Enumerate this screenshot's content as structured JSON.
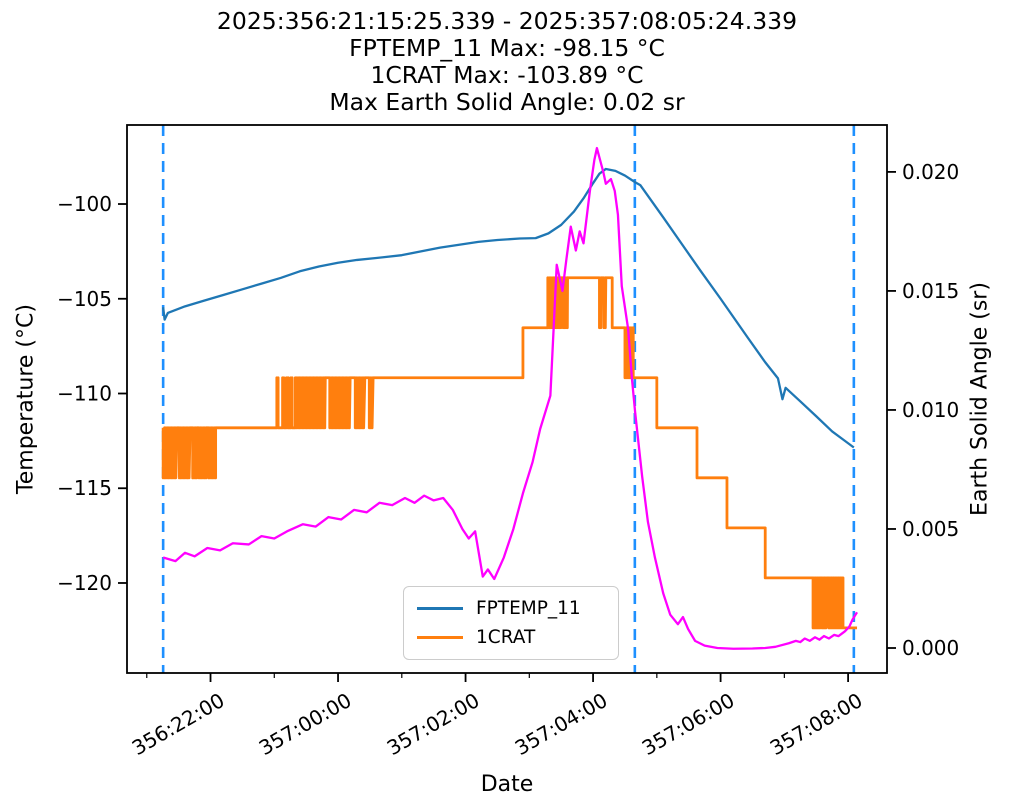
{
  "figure": {
    "kind": "matplotlib-line-plot",
    "background": "#ffffff"
  },
  "title_lines": [
    "2025:356:21:15:25.339 - 2025:357:08:05:24.339",
    "FPTEMP_11 Max: -98.15 °C",
    "1CRAT Max: -103.89 °C",
    "Max Earth Solid Angle: 0.02 sr"
  ],
  "stats": {
    "time_range_start": "2025:356:21:15:25.339",
    "time_range_end": "2025:357:08:05:24.339",
    "fptemp_11_max_c": -98.15,
    "crat_max_c": -103.89,
    "max_earth_solid_angle_sr": 0.02
  },
  "legend": {
    "items": [
      {
        "label": "FPTEMP_11",
        "color": "#1f77b4"
      },
      {
        "label": "1CRAT",
        "color": "#ff7f0e"
      }
    ]
  },
  "chart_data": {
    "type": "line",
    "x_axis": {
      "label": "Date",
      "units": "hours since day 356 00:00 (ticks shown as day:hh:mm)",
      "lim": [
        20.69,
        32.61
      ],
      "major_ticks": [
        {
          "t": 22,
          "label": "356:22:00"
        },
        {
          "t": 24,
          "label": "357:00:00"
        },
        {
          "t": 26,
          "label": "357:02:00"
        },
        {
          "t": 28,
          "label": "357:04:00"
        },
        {
          "t": 30,
          "label": "357:06:00"
        },
        {
          "t": 32,
          "label": "357:08:00"
        }
      ],
      "minor_ticks": [
        21,
        23,
        25,
        27,
        29,
        31
      ]
    },
    "y_left": {
      "label": "Temperature (°C)",
      "lim": [
        -124.75,
        -95.83
      ],
      "ticks": [
        {
          "v": -100,
          "label": "−100"
        },
        {
          "v": -105,
          "label": "−105"
        },
        {
          "v": -110,
          "label": "−110"
        },
        {
          "v": -115,
          "label": "−115"
        },
        {
          "v": -120,
          "label": "−120"
        }
      ]
    },
    "y_right": {
      "label": "Earth Solid Angle (sr)",
      "lim": [
        -0.00105,
        0.02197
      ],
      "ticks": [
        {
          "v": 0.0,
          "label": "0.000"
        },
        {
          "v": 0.005,
          "label": "0.005"
        },
        {
          "v": 0.01,
          "label": "0.010"
        },
        {
          "v": 0.015,
          "label": "0.015"
        },
        {
          "v": 0.02,
          "label": "0.020"
        }
      ]
    },
    "vlines": {
      "color": "#1E90FF",
      "style": "dashed",
      "times": [
        21.257,
        28.655,
        32.09
      ]
    },
    "series": [
      {
        "name": "FPTEMP_11",
        "axis": "left",
        "color": "#1f77b4",
        "width": 2.3,
        "points": [
          [
            21.257,
            -105.45
          ],
          [
            21.28,
            -106.1
          ],
          [
            21.33,
            -105.75
          ],
          [
            21.6,
            -105.4
          ],
          [
            21.9,
            -105.1
          ],
          [
            22.2,
            -104.8
          ],
          [
            22.5,
            -104.5
          ],
          [
            22.8,
            -104.2
          ],
          [
            23.1,
            -103.9
          ],
          [
            23.4,
            -103.55
          ],
          [
            23.7,
            -103.3
          ],
          [
            24.0,
            -103.1
          ],
          [
            24.3,
            -102.95
          ],
          [
            24.6,
            -102.85
          ],
          [
            25.0,
            -102.7
          ],
          [
            25.3,
            -102.5
          ],
          [
            25.6,
            -102.3
          ],
          [
            25.9,
            -102.15
          ],
          [
            26.2,
            -102.0
          ],
          [
            26.5,
            -101.9
          ],
          [
            26.85,
            -101.82
          ],
          [
            27.1,
            -101.8
          ],
          [
            27.3,
            -101.55
          ],
          [
            27.5,
            -101.1
          ],
          [
            27.7,
            -100.4
          ],
          [
            27.85,
            -99.7
          ],
          [
            28.0,
            -98.9
          ],
          [
            28.1,
            -98.4
          ],
          [
            28.2,
            -98.15
          ],
          [
            28.35,
            -98.25
          ],
          [
            28.5,
            -98.5
          ],
          [
            28.66,
            -98.85
          ],
          [
            28.74,
            -99.0
          ],
          [
            29.1,
            -100.7
          ],
          [
            29.4,
            -102.15
          ],
          [
            29.68,
            -103.5
          ],
          [
            30.0,
            -105.0
          ],
          [
            30.43,
            -107.07
          ],
          [
            30.7,
            -108.35
          ],
          [
            30.9,
            -109.2
          ],
          [
            30.97,
            -110.3
          ],
          [
            31.02,
            -109.7
          ],
          [
            31.245,
            -110.4
          ],
          [
            31.5,
            -111.2
          ],
          [
            31.75,
            -112.0
          ],
          [
            31.95,
            -112.5
          ],
          [
            32.09,
            -112.85
          ]
        ]
      },
      {
        "name": "1CRAT",
        "axis": "left",
        "color": "#ff7f0e",
        "width": 2.8,
        "quant_levels": [
          -103.89,
          -106.53,
          -109.17,
          -111.81,
          -114.45,
          -117.09,
          -119.73,
          -122.37
        ],
        "osc_step_h": 0.022,
        "segments": [
          {
            "type": "osc",
            "t0": 21.257,
            "t1": 21.475,
            "hi": -111.81,
            "lo": -114.45
          },
          {
            "type": "level",
            "t0": 21.475,
            "t1": 21.51,
            "v": -111.81
          },
          {
            "type": "osc",
            "t0": 21.51,
            "t1": 21.68,
            "hi": -111.81,
            "lo": -114.45
          },
          {
            "type": "level",
            "t0": 21.68,
            "t1": 21.72,
            "v": -111.81
          },
          {
            "type": "osc",
            "t0": 21.72,
            "t1": 21.79,
            "hi": -111.81,
            "lo": -114.45
          },
          {
            "type": "level",
            "t0": 21.79,
            "t1": 21.82,
            "v": -111.81
          },
          {
            "type": "osc",
            "t0": 21.82,
            "t1": 21.93,
            "hi": -111.81,
            "lo": -114.45
          },
          {
            "type": "level",
            "t0": 21.93,
            "t1": 21.97,
            "v": -111.81
          },
          {
            "type": "osc",
            "t0": 21.97,
            "t1": 22.08,
            "hi": -111.81,
            "lo": -114.45
          },
          {
            "type": "level",
            "t0": 22.08,
            "t1": 23.04,
            "v": -111.81
          },
          {
            "type": "osc",
            "t0": 23.04,
            "t1": 23.06,
            "hi": -109.17,
            "lo": -111.81
          },
          {
            "type": "level",
            "t0": 23.06,
            "t1": 23.13,
            "v": -111.81
          },
          {
            "type": "osc",
            "t0": 23.13,
            "t1": 23.15,
            "hi": -109.17,
            "lo": -111.81
          },
          {
            "type": "level",
            "t0": 23.15,
            "t1": 23.19,
            "v": -111.81
          },
          {
            "type": "osc",
            "t0": 23.19,
            "t1": 23.22,
            "hi": -109.17,
            "lo": -111.81
          },
          {
            "type": "level",
            "t0": 23.22,
            "t1": 23.26,
            "v": -111.81
          },
          {
            "type": "osc",
            "t0": 23.26,
            "t1": 23.28,
            "hi": -109.17,
            "lo": -111.81
          },
          {
            "type": "level",
            "t0": 23.28,
            "t1": 23.33,
            "v": -111.81
          },
          {
            "type": "osc",
            "t0": 23.33,
            "t1": 23.8,
            "hi": -109.17,
            "lo": -111.81
          },
          {
            "type": "level",
            "t0": 23.8,
            "t1": 23.87,
            "v": -109.17
          },
          {
            "type": "osc",
            "t0": 23.87,
            "t1": 24.19,
            "hi": -109.17,
            "lo": -111.81
          },
          {
            "type": "level",
            "t0": 24.19,
            "t1": 24.27,
            "v": -109.17
          },
          {
            "type": "osc",
            "t0": 24.27,
            "t1": 24.42,
            "hi": -109.17,
            "lo": -111.81
          },
          {
            "type": "level",
            "t0": 24.42,
            "t1": 24.49,
            "v": -109.17
          },
          {
            "type": "osc",
            "t0": 24.49,
            "t1": 24.55,
            "hi": -109.17,
            "lo": -111.81
          },
          {
            "type": "level",
            "t0": 24.55,
            "t1": 26.9,
            "v": -109.17
          },
          {
            "type": "level",
            "t0": 26.9,
            "t1": 27.29,
            "v": -106.53
          },
          {
            "type": "osc",
            "t0": 27.29,
            "t1": 27.4,
            "hi": -103.89,
            "lo": -106.53
          },
          {
            "type": "level",
            "t0": 27.4,
            "t1": 27.43,
            "v": -103.89
          },
          {
            "type": "osc",
            "t0": 27.43,
            "t1": 27.5,
            "hi": -103.89,
            "lo": -106.53
          },
          {
            "type": "level",
            "t0": 27.5,
            "t1": 27.53,
            "v": -103.89
          },
          {
            "type": "osc",
            "t0": 27.53,
            "t1": 27.6,
            "hi": -103.89,
            "lo": -106.53
          },
          {
            "type": "level",
            "t0": 27.6,
            "t1": 28.1,
            "v": -103.89
          },
          {
            "type": "osc",
            "t0": 28.1,
            "t1": 28.13,
            "hi": -103.89,
            "lo": -106.53
          },
          {
            "type": "level",
            "t0": 28.13,
            "t1": 28.17,
            "v": -103.89
          },
          {
            "type": "osc",
            "t0": 28.17,
            "t1": 28.2,
            "hi": -103.89,
            "lo": -106.53
          },
          {
            "type": "level",
            "t0": 28.2,
            "t1": 28.3,
            "v": -103.89
          },
          {
            "type": "level",
            "t0": 28.3,
            "t1": 28.5,
            "v": -106.53
          },
          {
            "type": "osc",
            "t0": 28.5,
            "t1": 28.63,
            "hi": -106.53,
            "lo": -109.17
          },
          {
            "type": "level",
            "t0": 28.63,
            "t1": 29.0,
            "v": -109.17
          },
          {
            "type": "level",
            "t0": 29.0,
            "t1": 29.63,
            "v": -111.81
          },
          {
            "type": "level",
            "t0": 29.63,
            "t1": 30.1,
            "v": -114.45
          },
          {
            "type": "level",
            "t0": 30.1,
            "t1": 30.7,
            "v": -117.09
          },
          {
            "type": "level",
            "t0": 30.7,
            "t1": 31.45,
            "v": -119.73
          },
          {
            "type": "osc",
            "t0": 31.45,
            "t1": 31.56,
            "hi": -119.73,
            "lo": -122.37
          },
          {
            "type": "level",
            "t0": 31.56,
            "t1": 31.59,
            "v": -119.73
          },
          {
            "type": "osc",
            "t0": 31.59,
            "t1": 31.67,
            "hi": -119.73,
            "lo": -122.37
          },
          {
            "type": "level",
            "t0": 31.67,
            "t1": 31.7,
            "v": -119.73
          },
          {
            "type": "osc",
            "t0": 31.7,
            "t1": 31.92,
            "hi": -119.73,
            "lo": -122.37
          },
          {
            "type": "level",
            "t0": 31.92,
            "t1": 32.14,
            "v": -122.37
          }
        ]
      },
      {
        "name": "Earth Solid Angle",
        "axis": "right",
        "color": "#ff00ff",
        "width": 2.3,
        "points": [
          [
            21.257,
            0.0038
          ],
          [
            21.45,
            0.00365
          ],
          [
            21.6,
            0.004
          ],
          [
            21.75,
            0.00385
          ],
          [
            21.95,
            0.0042
          ],
          [
            22.15,
            0.0041
          ],
          [
            22.35,
            0.0044
          ],
          [
            22.6,
            0.00435
          ],
          [
            22.8,
            0.0047
          ],
          [
            23.0,
            0.0046
          ],
          [
            23.2,
            0.0049
          ],
          [
            23.45,
            0.0052
          ],
          [
            23.65,
            0.0051
          ],
          [
            23.85,
            0.0055
          ],
          [
            24.05,
            0.0054
          ],
          [
            24.25,
            0.0058
          ],
          [
            24.45,
            0.0057
          ],
          [
            24.65,
            0.0061
          ],
          [
            24.85,
            0.006
          ],
          [
            25.05,
            0.0063
          ],
          [
            25.2,
            0.0061
          ],
          [
            25.35,
            0.0064
          ],
          [
            25.5,
            0.0062
          ],
          [
            25.65,
            0.0063
          ],
          [
            25.8,
            0.0058
          ],
          [
            25.95,
            0.005
          ],
          [
            26.05,
            0.0046
          ],
          [
            26.15,
            0.0049
          ],
          [
            26.27,
            0.003
          ],
          [
            26.35,
            0.0033
          ],
          [
            26.45,
            0.0029
          ],
          [
            26.6,
            0.0038
          ],
          [
            26.75,
            0.005
          ],
          [
            26.9,
            0.0065
          ],
          [
            27.05,
            0.0078
          ],
          [
            27.17,
            0.0092
          ],
          [
            27.33,
            0.0106
          ],
          [
            27.43,
            0.0161
          ],
          [
            27.52,
            0.015
          ],
          [
            27.58,
            0.0163
          ],
          [
            27.65,
            0.0177
          ],
          [
            27.73,
            0.0167
          ],
          [
            27.79,
            0.0175
          ],
          [
            27.85,
            0.017
          ],
          [
            27.95,
            0.0192
          ],
          [
            28.02,
            0.0205
          ],
          [
            28.06,
            0.021
          ],
          [
            28.12,
            0.0204
          ],
          [
            28.16,
            0.02
          ],
          [
            28.2,
            0.0195
          ],
          [
            28.28,
            0.0197
          ],
          [
            28.34,
            0.0192
          ],
          [
            28.39,
            0.0182
          ],
          [
            28.45,
            0.0152
          ],
          [
            28.5,
            0.0143
          ],
          [
            28.55,
            0.0134
          ],
          [
            28.61,
            0.0113
          ],
          [
            28.66,
            0.0099
          ],
          [
            28.77,
            0.0072
          ],
          [
            28.86,
            0.0053
          ],
          [
            28.97,
            0.0038
          ],
          [
            29.1,
            0.0023
          ],
          [
            29.21,
            0.0014
          ],
          [
            29.33,
            0.001
          ],
          [
            29.41,
            0.0013
          ],
          [
            29.49,
            0.0008
          ],
          [
            29.6,
            0.0003
          ],
          [
            29.75,
            0.0001
          ],
          [
            29.95,
            0.0
          ],
          [
            30.2,
            -3e-05
          ],
          [
            30.5,
            -2e-05
          ],
          [
            30.7,
            0.0
          ],
          [
            30.86,
            5e-05
          ],
          [
            31.07,
            0.0002
          ],
          [
            31.18,
            0.0003
          ],
          [
            31.25,
            0.00025
          ],
          [
            31.32,
            0.0004
          ],
          [
            31.4,
            0.0003
          ],
          [
            31.48,
            0.00045
          ],
          [
            31.55,
            0.00035
          ],
          [
            31.62,
            0.0005
          ],
          [
            31.7,
            0.0004
          ],
          [
            31.78,
            0.00055
          ],
          [
            31.85,
            0.0005
          ],
          [
            31.95,
            0.0007
          ],
          [
            32.02,
            0.0009
          ],
          [
            32.07,
            0.0012
          ],
          [
            32.14,
            0.0015
          ]
        ]
      }
    ],
    "grid": false,
    "legend_position": "lower center"
  }
}
